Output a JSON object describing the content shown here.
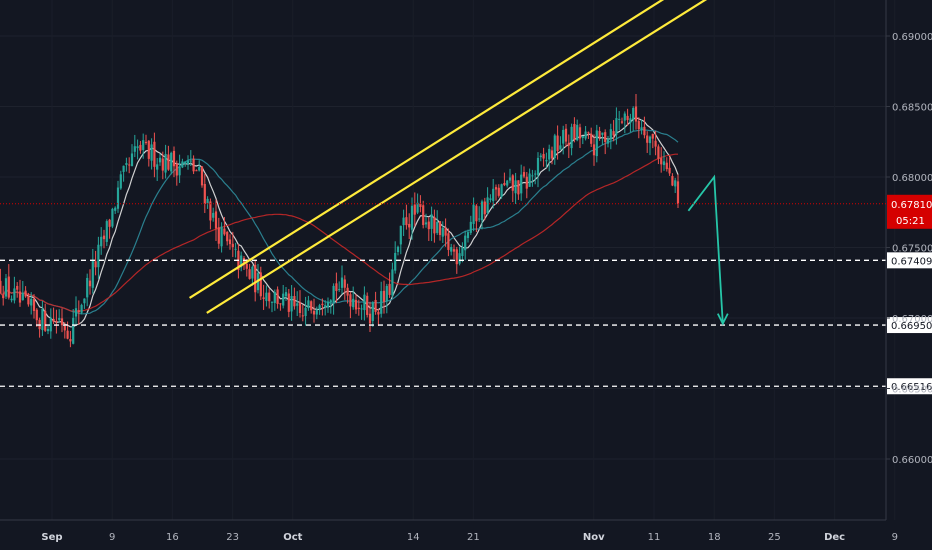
{
  "chart_data": {
    "type": "candlestick",
    "x_tick_labels": [
      "Sep",
      "9",
      "16",
      "23",
      "Oct",
      "14",
      "21",
      "Nov",
      "11",
      "18",
      "25",
      "Dec",
      "9"
    ],
    "y_tick_labels": [
      "0.69000",
      "0.68500",
      "0.68000",
      "0.67500",
      "0.67000",
      "0.66500",
      "0.66000"
    ],
    "y_ticks": [
      0.69,
      0.685,
      0.68,
      0.675,
      0.67,
      0.665,
      0.66
    ],
    "ylim": [
      0.6545,
      0.6931
    ],
    "current_price": "0.67810",
    "current_price_value": 0.6781,
    "countdown": "05:21",
    "horizontal_levels": [
      {
        "label": "0.67409",
        "value": 0.67409
      },
      {
        "label": "0.66950",
        "value": 0.6695
      },
      {
        "label": "0.66516",
        "value": 0.66516
      }
    ],
    "channel": {
      "upper": {
        "from": {
          "date": "Aug 31",
          "price": 0.6645
        },
        "to": {
          "date": "Nov 4",
          "price": 0.6895
        }
      },
      "lower": {
        "from": {
          "date": "Aug 31",
          "price": 0.6627
        },
        "to": {
          "date": "Nov 4",
          "price": 0.6876
        }
      }
    },
    "moving_averages": [
      {
        "color": "#e6e6e6"
      },
      {
        "color": "#2e8b9a"
      },
      {
        "color": "#c62828"
      }
    ],
    "projection_color": "#26c6a8",
    "colors": {
      "up": "#26a69a",
      "down": "#ef5350",
      "channel": "#ffeb3b",
      "price_tag": "#d50000",
      "level_tag": "#ffffff"
    },
    "price_path": [
      {
        "date": "Aug 27",
        "price": 0.6725
      },
      {
        "date": "Aug 29",
        "price": 0.6712
      },
      {
        "date": "Sep 1",
        "price": 0.6698
      },
      {
        "date": "Sep 3",
        "price": 0.67
      },
      {
        "date": "Sep 4",
        "price": 0.669
      },
      {
        "date": "Sep 5",
        "price": 0.6705
      },
      {
        "date": "Sep 8",
        "price": 0.6755
      },
      {
        "date": "Sep 10",
        "price": 0.6795
      },
      {
        "date": "Sep 12",
        "price": 0.682
      },
      {
        "date": "Sep 14",
        "price": 0.6815
      },
      {
        "date": "Sep 16",
        "price": 0.681
      },
      {
        "date": "Sep 18",
        "price": 0.6808
      },
      {
        "date": "Sep 19",
        "price": 0.6803
      },
      {
        "date": "Sep 21",
        "price": 0.6765
      },
      {
        "date": "Sep 23",
        "price": 0.6745
      },
      {
        "date": "Sep 25",
        "price": 0.673
      },
      {
        "date": "Sep 27",
        "price": 0.6718
      },
      {
        "date": "Sep 29",
        "price": 0.6712
      },
      {
        "date": "Oct 1",
        "price": 0.67
      },
      {
        "date": "Oct 3",
        "price": 0.6715
      },
      {
        "date": "Oct 5",
        "price": 0.6723
      },
      {
        "date": "Oct 7",
        "price": 0.6715
      },
      {
        "date": "Oct 9",
        "price": 0.6705
      },
      {
        "date": "Oct 11",
        "price": 0.6715
      },
      {
        "date": "Oct 13",
        "price": 0.677
      },
      {
        "date": "Oct 15",
        "price": 0.6775
      },
      {
        "date": "Oct 17",
        "price": 0.6758
      },
      {
        "date": "Oct 19",
        "price": 0.6745
      },
      {
        "date": "Oct 21",
        "price": 0.6772
      },
      {
        "date": "Oct 24",
        "price": 0.679
      },
      {
        "date": "Oct 27",
        "price": 0.6795
      },
      {
        "date": "Oct 29",
        "price": 0.681
      },
      {
        "date": "Oct 31",
        "price": 0.6825
      },
      {
        "date": "Nov 2",
        "price": 0.683
      },
      {
        "date": "Nov 4",
        "price": 0.6822
      },
      {
        "date": "Nov 6",
        "price": 0.6835
      },
      {
        "date": "Nov 8",
        "price": 0.6845
      },
      {
        "date": "Nov 10",
        "price": 0.6835
      },
      {
        "date": "Nov 12",
        "price": 0.6812
      },
      {
        "date": "Nov 14",
        "price": 0.6781
      }
    ]
  }
}
